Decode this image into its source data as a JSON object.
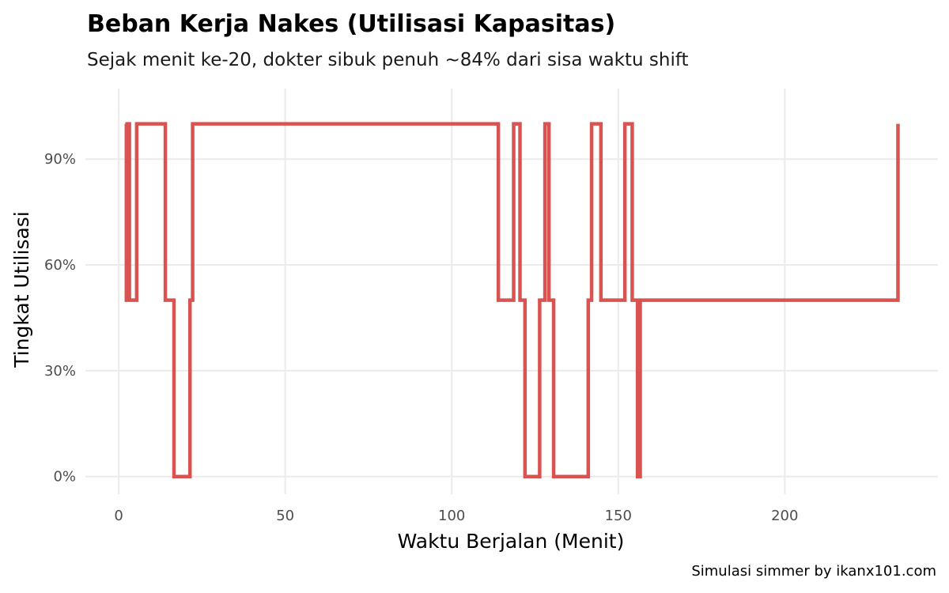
{
  "chart_data": {
    "type": "line",
    "title": "Beban Kerja Nakes (Utilisasi Kapasitas)",
    "subtitle": "Sejak menit ke-20, dokter sibuk penuh ~84% dari sisa waktu shift",
    "xlabel": "Waktu Berjalan (Menit)",
    "ylabel": "Tingkat Utilisasi",
    "caption": "Simulasi simmer by ikanx101.com",
    "xlim": [
      -10,
      246
    ],
    "ylim": [
      -5,
      110
    ],
    "x_ticks": [
      0,
      50,
      100,
      150,
      200
    ],
    "y_ticks": [
      0,
      30,
      60,
      90
    ],
    "y_tick_labels": [
      "0%",
      "30%",
      "60%",
      "90%"
    ],
    "grid": true,
    "step": true,
    "color": "#d95350",
    "series": [
      {
        "x": [
          2,
          2.3,
          2.6,
          3.2,
          3.5,
          5.4,
          14,
          16.6,
          21.4,
          22.2,
          114,
          118.6,
          120.5,
          122,
          126.4,
          128,
          129.2,
          130.6,
          141,
          142,
          144.8,
          152,
          154.2,
          155.8,
          156.6,
          234
        ],
        "y": [
          100,
          50,
          100,
          50,
          50,
          100,
          50,
          0,
          50,
          100,
          50,
          100,
          50,
          0,
          50,
          100,
          50,
          0,
          50,
          100,
          50,
          100,
          50,
          0,
          50,
          100
        ]
      }
    ]
  }
}
